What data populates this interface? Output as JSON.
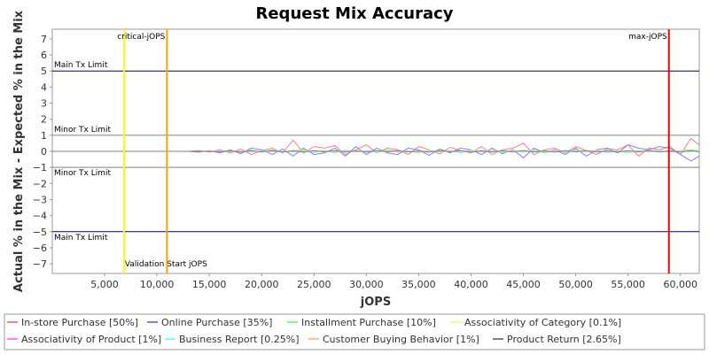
{
  "chart_data": {
    "type": "line",
    "title": "Request Mix Accuracy",
    "xlabel": "jOPS",
    "ylabel": "Actual % in the Mix - Expected % in the Mix",
    "xlim": [
      0,
      61800
    ],
    "ylim": [
      -7.6,
      7.6
    ],
    "xticks": [
      5000,
      10000,
      15000,
      20000,
      25000,
      30000,
      35000,
      40000,
      45000,
      50000,
      55000,
      60000
    ],
    "xtick_labels": [
      "5,000",
      "10,000",
      "15,000",
      "20,000",
      "25,000",
      "30,000",
      "35,000",
      "40,000",
      "45,000",
      "50,000",
      "55,000",
      "60,000"
    ],
    "yticks": [
      7,
      6,
      5,
      4,
      3,
      2,
      1,
      0,
      -1,
      -2,
      -3,
      -4,
      -5,
      -6,
      -7
    ],
    "ytick_labels": [
      "7",
      "6",
      "5",
      "4",
      "3",
      "2",
      "1",
      "0",
      "−1",
      "−2",
      "−3",
      "−4",
      "−5",
      "−6",
      "−7"
    ],
    "grid": false,
    "legend_position": "bottom",
    "limit_lines": [
      {
        "y": 5,
        "label": "Main Tx Limit",
        "color": "#000066"
      },
      {
        "y": 1,
        "label": "Minor Tx Limit",
        "color": "#808080"
      },
      {
        "y": -1,
        "label": "Minor Tx Limit",
        "color": "#808080"
      },
      {
        "y": -5,
        "label": "Main Tx Limit",
        "color": "#000066"
      }
    ],
    "vertical_markers": [
      {
        "x": 6850,
        "label": "Validation Start jOPS",
        "color": "#ffff00",
        "label_pos": "bottom"
      },
      {
        "x": 10950,
        "label": "critical-jOPS",
        "color": "#ffa500",
        "label_pos": "top"
      },
      {
        "x": 58900,
        "label": "max-jOPS",
        "color": "#ff0000",
        "label_pos": "top"
      }
    ],
    "x": [
      0,
      1000,
      2000,
      3000,
      4000,
      5000,
      6000,
      7000,
      8000,
      9000,
      10000,
      11000,
      12000,
      13000,
      14000,
      15000,
      16000,
      17000,
      18000,
      19000,
      20000,
      21000,
      22000,
      23000,
      24000,
      25000,
      26000,
      27000,
      28000,
      29000,
      30000,
      31000,
      32000,
      33000,
      34000,
      35000,
      36000,
      37000,
      38000,
      39000,
      40000,
      41000,
      42000,
      43000,
      44000,
      45000,
      46000,
      47000,
      48000,
      49000,
      50000,
      51000,
      52000,
      53000,
      54000,
      55000,
      56000,
      57000,
      58000,
      59000,
      60000,
      61000,
      61800
    ],
    "series": [
      {
        "name": "In-store Purchase [50%]",
        "color": "#ff8080",
        "values": [
          0,
          0,
          0,
          0,
          0,
          0,
          0,
          0,
          0,
          0,
          0,
          0,
          0,
          0,
          0.05,
          -0.05,
          0.1,
          -0.1,
          0.15,
          -0.2,
          0.05,
          0.2,
          -0.1,
          0.7,
          -0.1,
          0.3,
          0.2,
          0.35,
          -0.2,
          0.1,
          0.4,
          -0.1,
          0.2,
          0.1,
          -0.2,
          0.3,
          0.1,
          -0.15,
          0.25,
          0.05,
          -0.1,
          0.3,
          -0.2,
          0.1,
          0.2,
          0.5,
          -0.2,
          0.1,
          0.2,
          -0.1,
          0.3,
          0.05,
          -0.2,
          0.15,
          0.1,
          0.4,
          -0.3,
          0.2,
          0.1,
          0.3,
          -0.2,
          0.8,
          0.4
        ]
      },
      {
        "name": "Online Purchase [35%]",
        "color": "#8080ff",
        "values": [
          0,
          0,
          0,
          0,
          0,
          0,
          0,
          0,
          0,
          0,
          0,
          0,
          0,
          0,
          -0.05,
          0.05,
          -0.1,
          0.1,
          -0.15,
          0.2,
          0.1,
          -0.2,
          0.15,
          -0.3,
          0.2,
          -0.2,
          -0.1,
          0.2,
          -0.3,
          0.3,
          -0.2,
          0.2,
          -0.1,
          -0.2,
          0.2,
          0.1,
          -0.25,
          0.15,
          -0.1,
          0.2,
          0.1,
          -0.2,
          0.2,
          -0.15,
          0.1,
          -0.4,
          0.2,
          -0.1,
          0.1,
          -0.2,
          0.2,
          -0.3,
          0.1,
          0.2,
          -0.1,
          0.4,
          0.2,
          0.1,
          0.3,
          0.2,
          -0.2,
          -0.6,
          -0.3
        ]
      },
      {
        "name": "Installment Purchase [10%]",
        "color": "#80ff80",
        "values": [
          0,
          0,
          0,
          0,
          0,
          0,
          0,
          0,
          0,
          0,
          0,
          0,
          0,
          0,
          0,
          0.03,
          -0.03,
          0.05,
          -0.05,
          0.08,
          -0.06,
          0.1,
          -0.05,
          0.05,
          0.1,
          -0.08,
          0.06,
          -0.1,
          0.08,
          -0.05,
          0.06,
          -0.08,
          0.1,
          -0.06,
          0.05,
          -0.1,
          0.08,
          -0.05,
          0.06,
          -0.1,
          0.08,
          -0.04,
          0.06,
          -0.08,
          0.05,
          -0.06,
          0.08,
          -0.1,
          0.05,
          -0.06,
          0.1,
          -0.05,
          0.06,
          -0.08,
          0.05,
          -0.1,
          0.06,
          -0.05,
          0.08,
          -0.06,
          0.05,
          0.1,
          0.05
        ]
      },
      {
        "name": "Associativity of Category [0.1%]",
        "color": "#ffff80",
        "values": [
          0,
          0,
          0,
          0,
          0,
          0,
          0,
          0,
          0,
          0,
          0,
          0,
          0,
          0,
          0,
          0,
          0,
          0,
          0,
          0,
          0,
          0,
          0,
          0,
          0,
          0,
          0,
          0,
          0,
          0,
          0,
          0,
          0,
          0,
          0,
          0,
          0,
          0,
          0,
          0,
          0,
          0,
          0,
          0,
          0,
          0,
          0,
          0,
          0,
          0,
          0,
          0,
          0,
          0,
          0,
          0,
          0,
          0,
          0,
          0,
          0,
          0,
          0
        ]
      },
      {
        "name": "Associativity of Product [1%]",
        "color": "#ff80ff",
        "values": [
          0,
          0,
          0,
          0,
          0,
          0,
          0,
          0,
          0,
          0,
          0,
          0,
          0,
          0,
          0,
          0,
          0.02,
          -0.02,
          0.03,
          -0.02,
          0.02,
          -0.03,
          0.02,
          -0.02,
          0.03,
          -0.02,
          0.02,
          -0.03,
          0.02,
          -0.02,
          0.03,
          -0.02,
          0.02,
          -0.03,
          0.02,
          -0.02,
          0.03,
          -0.02,
          0.02,
          -0.03,
          0.02,
          -0.02,
          0.03,
          -0.02,
          0.02,
          -0.03,
          0.02,
          -0.02,
          0.03,
          -0.02,
          0.02,
          -0.03,
          0.02,
          -0.02,
          0.03,
          -0.02,
          0.02,
          -0.03,
          0.02,
          -0.02,
          0.03,
          -0.02,
          0.02
        ]
      },
      {
        "name": "Business Report [0.25%]",
        "color": "#80ffff",
        "values": [
          0,
          0,
          0,
          0,
          0,
          0,
          0,
          0,
          0,
          0,
          0,
          0,
          0,
          0,
          0,
          0,
          0.01,
          -0.01,
          0.01,
          -0.01,
          0.01,
          -0.01,
          0.01,
          -0.01,
          0.01,
          -0.01,
          0.01,
          -0.01,
          0.01,
          -0.01,
          0.01,
          -0.01,
          0.01,
          -0.01,
          0.01,
          -0.01,
          0.01,
          -0.01,
          0.01,
          -0.01,
          0.01,
          -0.01,
          0.01,
          -0.01,
          0.01,
          -0.01,
          0.01,
          -0.01,
          0.01,
          -0.01,
          0.01,
          -0.01,
          0.01,
          -0.01,
          0.01,
          -0.01,
          0.01,
          -0.01,
          0.01,
          -0.01,
          0.01,
          -0.01,
          0.01
        ]
      },
      {
        "name": "Customer Buying Behavior [1%]",
        "color": "#ffc0a0",
        "values": [
          0,
          0,
          0,
          0,
          0,
          0,
          0,
          0,
          0,
          0,
          0,
          0,
          0,
          0,
          0,
          0.02,
          -0.03,
          0.04,
          -0.02,
          0.03,
          -0.04,
          0.02,
          -0.03,
          0.04,
          -0.02,
          0.03,
          -0.04,
          0.02,
          -0.03,
          0.04,
          -0.02,
          0.03,
          -0.04,
          0.02,
          -0.03,
          0.04,
          -0.02,
          0.03,
          -0.04,
          0.02,
          -0.03,
          0.04,
          -0.02,
          0.03,
          -0.04,
          0.02,
          -0.03,
          0.04,
          -0.02,
          0.03,
          -0.04,
          0.02,
          -0.03,
          0.04,
          -0.02,
          0.03,
          -0.04,
          0.02,
          -0.03,
          0.04,
          -0.02,
          0.03,
          -0.04
        ]
      },
      {
        "name": "Product Return [2.65%]",
        "color": "#808080",
        "values": [
          0,
          0,
          0,
          0,
          0,
          0,
          0,
          0,
          0,
          0,
          0,
          0,
          0,
          0,
          0,
          0,
          -0.03,
          0.03,
          -0.05,
          0.04,
          -0.03,
          0.05,
          -0.04,
          0.03,
          -0.05,
          0.04,
          -0.03,
          0.05,
          -0.04,
          0.03,
          -0.05,
          0.04,
          -0.03,
          0.05,
          -0.04,
          0.03,
          -0.05,
          0.04,
          -0.03,
          0.05,
          -0.04,
          0.03,
          -0.05,
          0.04,
          -0.03,
          0.05,
          -0.04,
          0.03,
          -0.05,
          0.04,
          -0.03,
          0.05,
          -0.04,
          0.03,
          -0.05,
          0.04,
          -0.03,
          0.05,
          -0.04,
          0.03,
          -0.05,
          0.04,
          -0.03
        ]
      }
    ]
  }
}
